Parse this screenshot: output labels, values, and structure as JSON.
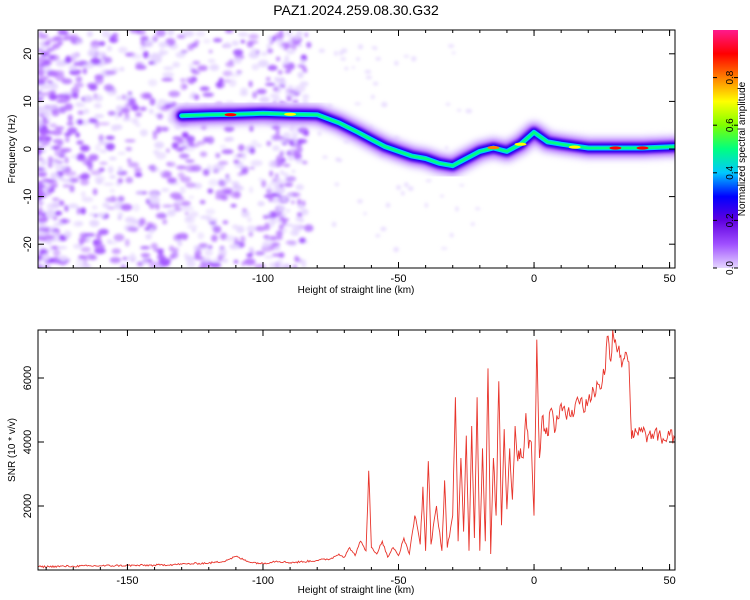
{
  "title": "PAZ1.2024.259.08.30.G32",
  "colors": {
    "line": "#e8342b",
    "cmap": [
      "#e5d6ff",
      "#a050ff",
      "#6000e0",
      "#0000ff",
      "#00c8ff",
      "#00ff80",
      "#80ff00",
      "#ffff00",
      "#ff8000",
      "#ff0000",
      "#ff1a8c"
    ]
  },
  "chart_data": [
    {
      "type": "heatmap",
      "xlabel": "Height of straight line (km)",
      "ylabel": "Frequency (Hz)",
      "xlim": [
        -183,
        52
      ],
      "ylim": [
        -25,
        25
      ],
      "xticks": [
        -150,
        -100,
        -50,
        0,
        50
      ],
      "yticks": [
        -20,
        -10,
        0,
        10,
        20
      ],
      "colorbar": {
        "label": "Normalized spectral amplitude",
        "range": [
          0,
          1
        ],
        "ticks": [
          "0.0",
          "0.2",
          "0.4",
          "0.6",
          "0.8"
        ]
      },
      "ridge": {
        "x": [
          -130,
          -120,
          -110,
          -100,
          -90,
          -80,
          -72,
          -65,
          -60,
          -55,
          -50,
          -45,
          -40,
          -35,
          -30,
          -25,
          -20,
          -15,
          -10,
          -5,
          0,
          5,
          10,
          20,
          30,
          40,
          52
        ],
        "y": [
          7,
          7.2,
          7.3,
          7.5,
          7.3,
          7.2,
          5.5,
          3.5,
          2.0,
          0.5,
          -0.5,
          -1.5,
          -2.0,
          -3.0,
          -3.5,
          -2.0,
          -0.5,
          0.2,
          -0.5,
          1.0,
          3.5,
          1.5,
          1.0,
          0.2,
          0.2,
          0.2,
          0.5
        ]
      }
    },
    {
      "type": "line",
      "xlabel": "Height of straight line (km)",
      "ylabel": "SNR (10 * v/v)",
      "xlim": [
        -183,
        52
      ],
      "ylim": [
        0,
        7500
      ],
      "xticks": [
        -150,
        -100,
        -50,
        0,
        50
      ],
      "yticks": [
        2000,
        4000,
        6000
      ],
      "series": [
        {
          "x": [
            -183,
            -170,
            -160,
            -150,
            -140,
            -130,
            -120,
            -115,
            -110,
            -105,
            -100,
            -95,
            -90,
            -85,
            -80,
            -75,
            -72,
            -70,
            -68,
            -66,
            -64,
            -62,
            -61,
            -60,
            -58,
            -56,
            -54,
            -52,
            -50,
            -48,
            -46,
            -44,
            -42,
            -41,
            -40,
            -39,
            -38,
            -36,
            -34,
            -33,
            -32,
            -30,
            -29,
            -28,
            -27,
            -26,
            -25,
            -24,
            -23,
            -22,
            -21,
            -20,
            -19,
            -18,
            -17,
            -16,
            -15,
            -14,
            -13,
            -12,
            -11,
            -10,
            -9,
            -8,
            -7,
            -6,
            -5,
            -4,
            -3,
            -2,
            -1,
            0,
            1,
            2,
            3,
            4,
            5,
            6,
            8,
            10,
            12,
            14,
            16,
            18,
            20,
            22,
            24,
            26,
            27,
            28,
            29,
            30,
            31,
            32,
            33,
            34,
            35,
            36,
            37,
            38,
            40,
            42,
            44,
            46,
            48,
            50,
            52
          ],
          "y": [
            100,
            120,
            130,
            140,
            150,
            180,
            220,
            260,
            420,
            250,
            200,
            280,
            230,
            260,
            300,
            350,
            500,
            400,
            700,
            450,
            900,
            600,
            3100,
            700,
            500,
            900,
            400,
            700,
            450,
            1000,
            500,
            1700,
            800,
            2600,
            600,
            3400,
            800,
            2000,
            600,
            2800,
            700,
            1700,
            5400,
            900,
            3500,
            1200,
            4200,
            600,
            4500,
            1000,
            5400,
            600,
            3800,
            900,
            6300,
            500,
            3500,
            1700,
            5900,
            1400,
            4400,
            1900,
            3800,
            2200,
            4500,
            3400,
            3800,
            3500,
            4900,
            3800,
            4000,
            1700,
            7200,
            3500,
            4800,
            4400,
            4200,
            5000,
            4400,
            5200,
            4700,
            5000,
            5400,
            5100,
            5300,
            5600,
            5800,
            6100,
            7300,
            6600,
            7500,
            7200,
            6900,
            6700,
            6600,
            6800,
            6500,
            4100,
            4200,
            4300,
            4300,
            4200,
            4100,
            4250,
            4050,
            4200,
            4100
          ]
        }
      ]
    }
  ]
}
